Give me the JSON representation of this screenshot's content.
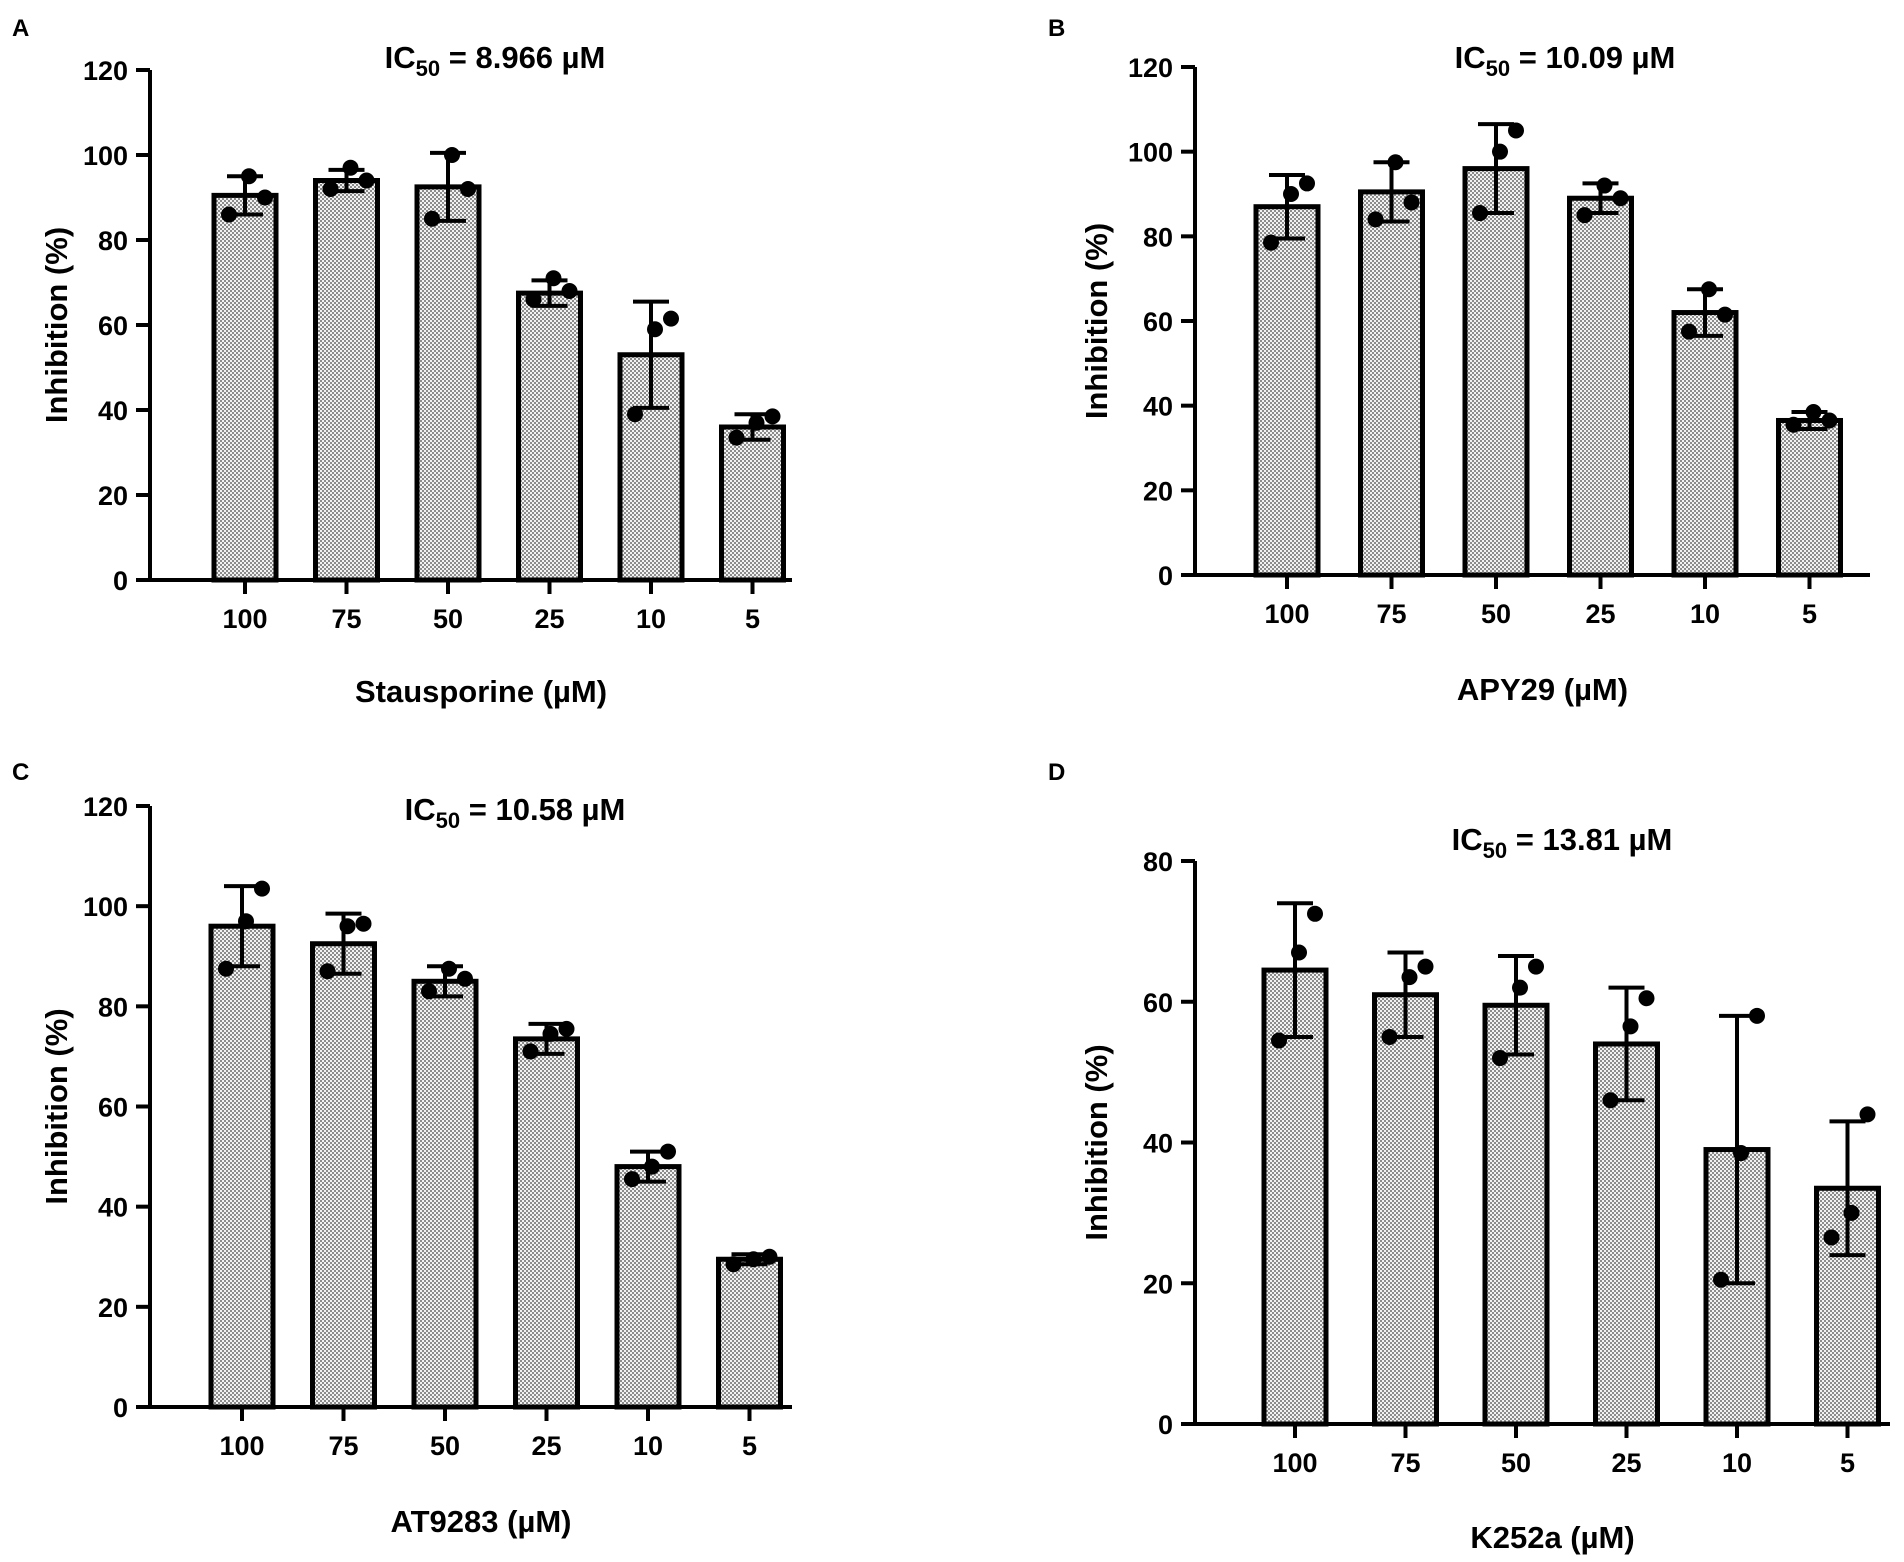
{
  "chart_data": [
    {
      "panel": "A",
      "type": "bar",
      "title_prefix": "IC",
      "title_sub": "50",
      "title_suffix": " = 8.966 µM",
      "xlabel": "Stausporine (µM)",
      "ylabel": "Inhibition (%)",
      "ylim": [
        0,
        120
      ],
      "yticks": [
        "0",
        "20",
        "40",
        "60",
        "80",
        "100",
        "120"
      ],
      "categories": [
        "100",
        "75",
        "50",
        "25",
        "10",
        "5"
      ],
      "values": [
        90.5,
        94.0,
        92.5,
        67.5,
        53.0,
        36.0
      ],
      "error": [
        4.5,
        2.5,
        8.0,
        3.0,
        12.5,
        3.0
      ],
      "points": [
        [
          86,
          95,
          90
        ],
        [
          92,
          97,
          94
        ],
        [
          85,
          100,
          92
        ],
        [
          66,
          71,
          68
        ],
        [
          39,
          59,
          61.5
        ],
        [
          33.5,
          37,
          38.5
        ]
      ]
    },
    {
      "panel": "B",
      "type": "bar",
      "title_prefix": "IC",
      "title_sub": "50",
      "title_suffix": " = 10.09 µM",
      "xlabel": "APY29 (µM)",
      "ylabel": "Inhibition (%)",
      "ylim": [
        0,
        120
      ],
      "yticks": [
        "0",
        "20",
        "40",
        "60",
        "80",
        "100",
        "120"
      ],
      "categories": [
        "100",
        "75",
        "50",
        "25",
        "10",
        "5"
      ],
      "values": [
        87.0,
        90.5,
        96.0,
        89.0,
        62.0,
        36.5
      ],
      "error": [
        7.5,
        7.0,
        10.5,
        3.5,
        5.5,
        2.0
      ],
      "points": [
        [
          78.5,
          90,
          92.5
        ],
        [
          84,
          97.5,
          88
        ],
        [
          85.5,
          100,
          105
        ],
        [
          85,
          92,
          89
        ],
        [
          57.5,
          67.5,
          61.5
        ],
        [
          35.5,
          38.5,
          36.5
        ]
      ]
    },
    {
      "panel": "C",
      "type": "bar",
      "title_prefix": "IC",
      "title_sub": "50",
      "title_suffix": " = 10.58 µM",
      "xlabel": "AT9283 (µM)",
      "ylabel": "Inhibition (%)",
      "ylim": [
        0,
        120
      ],
      "yticks": [
        "0",
        "20",
        "40",
        "60",
        "80",
        "100",
        "120"
      ],
      "categories": [
        "100",
        "75",
        "50",
        "25",
        "10",
        "5"
      ],
      "values": [
        96.0,
        92.5,
        85.0,
        73.5,
        48.0,
        29.5
      ],
      "error": [
        8.0,
        6.0,
        3.0,
        3.0,
        3.0,
        1.0
      ],
      "points": [
        [
          87.5,
          97,
          103.5
        ],
        [
          87,
          96,
          96.5
        ],
        [
          83,
          87.5,
          85.5
        ],
        [
          71,
          74.5,
          75.5
        ],
        [
          45.5,
          48,
          51
        ],
        [
          28.5,
          29.5,
          30
        ]
      ]
    },
    {
      "panel": "D",
      "type": "bar",
      "title_prefix": "IC",
      "title_sub": "50",
      "title_suffix": " = 13.81 µM",
      "xlabel": "K252a (µM)",
      "ylabel": "Inhibition (%)",
      "ylim": [
        0,
        80
      ],
      "yticks": [
        "0",
        "20",
        "40",
        "60",
        "80"
      ],
      "categories": [
        "100",
        "75",
        "50",
        "25",
        "10",
        "5"
      ],
      "values": [
        64.5,
        61.0,
        59.5,
        54.0,
        39.0,
        33.5
      ],
      "error": [
        9.5,
        6.0,
        7.0,
        8.0,
        19.0,
        9.5
      ],
      "points": [
        [
          54.5,
          67,
          72.5
        ],
        [
          55,
          63.5,
          65
        ],
        [
          52,
          62,
          65
        ],
        [
          46,
          56.5,
          60.5
        ],
        [
          20.5,
          38.5,
          58
        ],
        [
          26.5,
          30,
          44
        ]
      ]
    }
  ]
}
